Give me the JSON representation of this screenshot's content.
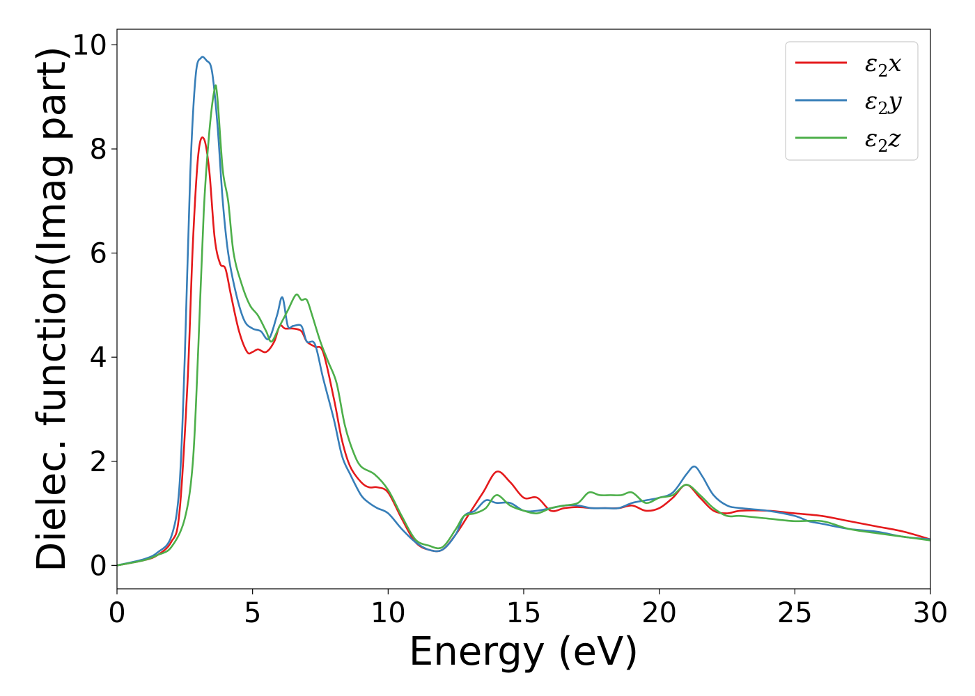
{
  "chart_data": {
    "type": "line",
    "xlabel": "Energy (eV)",
    "ylabel": "Dielec. function(Imag part)",
    "xlim": [
      0,
      30
    ],
    "ylim": [
      -0.45,
      10.3
    ],
    "xticks": [
      0,
      5,
      10,
      15,
      20,
      25,
      30
    ],
    "yticks": [
      0,
      2,
      4,
      6,
      8,
      10
    ],
    "grid": false,
    "legend_position": "top-right",
    "series": [
      {
        "name": "ε₂x",
        "legend_base": "ε",
        "legend_sub": "2",
        "legend_tail": "x",
        "color": "#e41a1c",
        "x": [
          0,
          1,
          1.5,
          2,
          2.3,
          2.6,
          2.8,
          3.0,
          3.2,
          3.4,
          3.6,
          3.8,
          4.0,
          4.2,
          4.5,
          4.8,
          5.0,
          5.2,
          5.5,
          5.8,
          6.0,
          6.2,
          6.5,
          6.8,
          7.0,
          7.3,
          7.6,
          8.0,
          8.3,
          8.6,
          9.0,
          9.3,
          9.6,
          10.0,
          10.5,
          11.0,
          11.5,
          12.0,
          12.5,
          13.0,
          13.5,
          14.0,
          14.5,
          15.0,
          15.5,
          16.0,
          16.5,
          17.0,
          17.5,
          18.0,
          18.5,
          19.0,
          19.5,
          20.0,
          20.5,
          21.0,
          21.5,
          22.0,
          22.5,
          23.0,
          24.0,
          25.0,
          26.0,
          27.0,
          28.0,
          29.0,
          30.0
        ],
        "y": [
          0,
          0.1,
          0.2,
          0.45,
          1.0,
          3.5,
          6.2,
          7.9,
          8.2,
          7.6,
          6.3,
          5.8,
          5.7,
          5.2,
          4.5,
          4.1,
          4.1,
          4.15,
          4.1,
          4.3,
          4.6,
          4.55,
          4.55,
          4.5,
          4.3,
          4.2,
          4.1,
          3.2,
          2.4,
          1.9,
          1.6,
          1.5,
          1.5,
          1.4,
          0.9,
          0.45,
          0.3,
          0.3,
          0.6,
          1.0,
          1.4,
          1.8,
          1.6,
          1.3,
          1.3,
          1.05,
          1.1,
          1.12,
          1.1,
          1.1,
          1.1,
          1.15,
          1.05,
          1.1,
          1.3,
          1.55,
          1.3,
          1.05,
          1.0,
          1.05,
          1.05,
          1.0,
          0.95,
          0.85,
          0.75,
          0.65,
          0.5
        ]
      },
      {
        "name": "ε₂y",
        "legend_base": "ε",
        "legend_sub": "2",
        "legend_tail": "y",
        "color": "#377eb8",
        "x": [
          0,
          1,
          1.5,
          2,
          2.3,
          2.5,
          2.7,
          2.9,
          3.1,
          3.3,
          3.5,
          3.7,
          3.9,
          4.1,
          4.4,
          4.7,
          5.0,
          5.3,
          5.6,
          5.9,
          6.1,
          6.3,
          6.5,
          6.8,
          7.0,
          7.3,
          7.6,
          8.0,
          8.3,
          8.6,
          9.0,
          9.3,
          9.6,
          10.0,
          10.5,
          11.0,
          11.5,
          12.0,
          12.5,
          12.8,
          13.2,
          13.6,
          14.0,
          14.5,
          15.0,
          15.5,
          16.0,
          16.5,
          17.0,
          17.5,
          18.0,
          18.5,
          19.0,
          19.5,
          20.0,
          20.5,
          21.0,
          21.3,
          21.6,
          22.0,
          22.5,
          23.0,
          24.0,
          25.0,
          25.5,
          26.0,
          27.0,
          28.0,
          29.0,
          30.0
        ],
        "y": [
          0,
          0.12,
          0.25,
          0.55,
          1.5,
          4.0,
          7.5,
          9.4,
          9.75,
          9.7,
          9.5,
          8.5,
          7.0,
          6.0,
          5.2,
          4.7,
          4.55,
          4.5,
          4.35,
          4.8,
          5.15,
          4.6,
          4.6,
          4.6,
          4.3,
          4.25,
          3.6,
          2.8,
          2.1,
          1.75,
          1.35,
          1.2,
          1.1,
          1.0,
          0.7,
          0.45,
          0.3,
          0.3,
          0.6,
          0.95,
          1.05,
          1.25,
          1.2,
          1.2,
          1.05,
          1.05,
          1.1,
          1.15,
          1.15,
          1.1,
          1.1,
          1.1,
          1.2,
          1.25,
          1.3,
          1.4,
          1.75,
          1.9,
          1.7,
          1.35,
          1.15,
          1.1,
          1.05,
          0.95,
          0.85,
          0.8,
          0.7,
          0.65,
          0.55,
          0.5
        ]
      },
      {
        "name": "ε₂z",
        "legend_base": "ε",
        "legend_sub": "2",
        "legend_tail": "z",
        "color": "#4daf4a",
        "x": [
          0,
          1,
          1.5,
          2,
          2.5,
          2.8,
          3.0,
          3.2,
          3.4,
          3.6,
          3.7,
          3.9,
          4.1,
          4.3,
          4.6,
          4.9,
          5.2,
          5.5,
          5.7,
          6.0,
          6.3,
          6.6,
          6.8,
          7.0,
          7.2,
          7.5,
          7.8,
          8.1,
          8.4,
          8.7,
          9.0,
          9.5,
          10.0,
          10.5,
          11.0,
          11.5,
          12.0,
          12.5,
          12.8,
          13.2,
          13.6,
          14.0,
          14.5,
          15.0,
          15.5,
          16.0,
          16.5,
          17.0,
          17.4,
          17.8,
          18.2,
          18.6,
          19.0,
          19.5,
          20.0,
          20.5,
          21.0,
          21.5,
          22.0,
          22.5,
          23.0,
          24.0,
          25.0,
          26.0,
          27.0,
          28.0,
          29.0,
          30.0
        ],
        "y": [
          0,
          0.1,
          0.2,
          0.35,
          0.9,
          2.0,
          4.2,
          6.8,
          8.3,
          9.15,
          9.0,
          7.6,
          7.0,
          6.0,
          5.4,
          5.0,
          4.8,
          4.5,
          4.3,
          4.6,
          4.9,
          5.2,
          5.1,
          5.1,
          4.8,
          4.3,
          3.9,
          3.5,
          2.7,
          2.2,
          1.9,
          1.75,
          1.45,
          0.95,
          0.5,
          0.38,
          0.35,
          0.7,
          0.95,
          1.0,
          1.1,
          1.35,
          1.15,
          1.05,
          1.0,
          1.1,
          1.15,
          1.2,
          1.4,
          1.35,
          1.35,
          1.35,
          1.4,
          1.2,
          1.3,
          1.35,
          1.55,
          1.35,
          1.1,
          0.95,
          0.95,
          0.9,
          0.85,
          0.85,
          0.7,
          0.62,
          0.55,
          0.48
        ]
      }
    ]
  }
}
